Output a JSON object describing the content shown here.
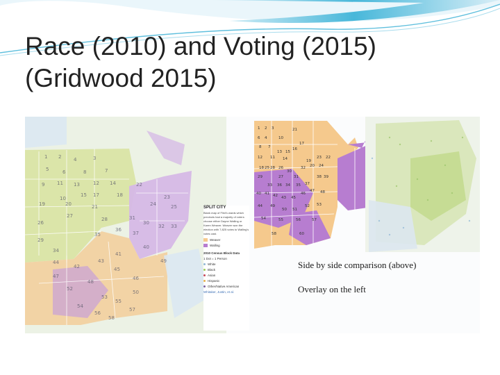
{
  "slide": {
    "title_line1": "Race (2010) and Voting (2015)",
    "title_line2": "(Gridwood 2015)"
  },
  "legend": {
    "heading": "SPLIT CITY",
    "body": "Blank map of Flint's wards which precincts had a majority of voters choose either Dayne Walling or Karen Weaver. Weaver won the election with 7,825 votes to Walling's votes cast.",
    "weaver_label": "Weaver",
    "walling_label": "Walling",
    "census_heading": "2010 Census Block Data",
    "dot_note": "1 Dot = 1 Person",
    "race_white": "White",
    "race_black": "Black",
    "race_asian": "Asian",
    "race_hispanic": "Hispanic",
    "race_other": "Other/Native American",
    "credit": "Whitaker, Justin, et al.",
    "colors": {
      "weaver": "#f5c98d",
      "walling": "#b77dd0",
      "white": "#8fb7d6",
      "black": "#9ccc55",
      "asian": "#c8475a",
      "hispanic": "#e8b04a",
      "other": "#7a5fa0"
    }
  },
  "captions": {
    "line1": "Side by side comparison (above)",
    "line2": "Overlay on the left"
  },
  "precincts_left": [
    "1",
    "2",
    "4",
    "3",
    "5",
    "6",
    "8",
    "7",
    "9",
    "11",
    "13",
    "12",
    "14",
    "15",
    "18",
    "16",
    "17",
    "10",
    "20",
    "19",
    "21",
    "22",
    "23",
    "24",
    "25",
    "26",
    "27",
    "28",
    "29",
    "30",
    "31",
    "32",
    "33",
    "34",
    "35",
    "36",
    "37",
    "38",
    "39",
    "40",
    "41",
    "42",
    "43",
    "44",
    "45",
    "46",
    "47",
    "48",
    "49",
    "50",
    "51",
    "52",
    "53",
    "54",
    "55",
    "56",
    "57",
    "58"
  ],
  "precincts_right": [
    "1",
    "2",
    "3",
    "4",
    "5",
    "6",
    "8",
    "7",
    "9",
    "10",
    "11",
    "12",
    "13",
    "14",
    "15",
    "16",
    "17",
    "18",
    "19",
    "20",
    "21",
    "22",
    "23",
    "24",
    "25",
    "26",
    "27",
    "28",
    "29",
    "30",
    "31",
    "32",
    "33",
    "34",
    "35",
    "36",
    "37",
    "38",
    "39",
    "40",
    "41",
    "42",
    "43",
    "44",
    "45",
    "46",
    "47",
    "48",
    "49",
    "50",
    "51",
    "52",
    "53",
    "54",
    "55",
    "56",
    "57",
    "58",
    "60"
  ]
}
